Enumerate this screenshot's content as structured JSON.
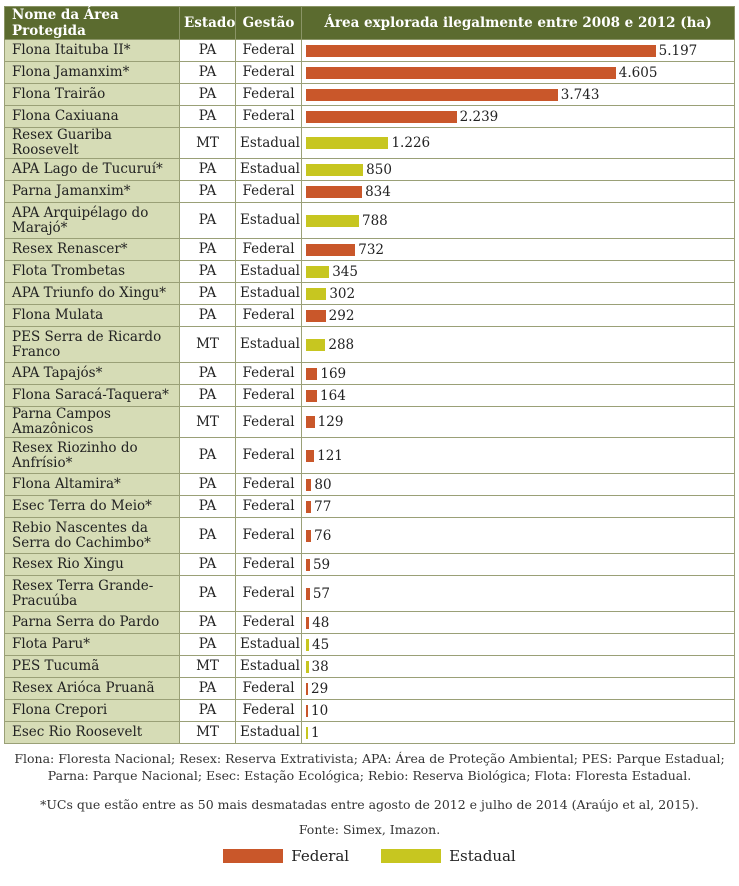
{
  "header": {
    "name": "Nome da Área Protegida",
    "state": "Estado",
    "management": "Gestão",
    "area": "Área explorada ilegalmente entre 2008 e 2012 (ha)"
  },
  "colors": {
    "Federal": "#c9572a",
    "Estadual": "#c7c620"
  },
  "chart_data": {
    "type": "bar",
    "orientation": "horizontal",
    "title": "",
    "value_label": "Área explorada ilegalmente entre 2008 e 2012 (ha)",
    "xlim": [
      0,
      5500
    ],
    "rows": [
      {
        "name": "Flona Itaituba II*",
        "state": "PA",
        "management": "Federal",
        "value": 5197,
        "label": "5.197"
      },
      {
        "name": "Flona Jamanxim*",
        "state": "PA",
        "management": "Federal",
        "value": 4605,
        "label": "4.605"
      },
      {
        "name": "Flona Trairão",
        "state": "PA",
        "management": "Federal",
        "value": 3743,
        "label": "3.743"
      },
      {
        "name": "Flona Caxiuana",
        "state": "PA",
        "management": "Federal",
        "value": 2239,
        "label": "2.239"
      },
      {
        "name": "Resex Guariba Roosevelt",
        "state": "MT",
        "management": "Estadual",
        "value": 1226,
        "label": "1.226"
      },
      {
        "name": "APA Lago de Tucuruí*",
        "state": "PA",
        "management": "Estadual",
        "value": 850,
        "label": "850"
      },
      {
        "name": "Parna Jamanxim*",
        "state": "PA",
        "management": "Federal",
        "value": 834,
        "label": "834"
      },
      {
        "name": "APA Arquipélago do Marajó*",
        "state": "PA",
        "management": "Estadual",
        "value": 788,
        "label": "788"
      },
      {
        "name": "Resex Renascer*",
        "state": "PA",
        "management": "Federal",
        "value": 732,
        "label": "732"
      },
      {
        "name": "Flota Trombetas",
        "state": "PA",
        "management": "Estadual",
        "value": 345,
        "label": "345"
      },
      {
        "name": "APA Triunfo do Xingu*",
        "state": "PA",
        "management": "Estadual",
        "value": 302,
        "label": "302"
      },
      {
        "name": "Flona Mulata",
        "state": "PA",
        "management": "Federal",
        "value": 292,
        "label": "292"
      },
      {
        "name": "PES Serra de Ricardo Franco",
        "state": "MT",
        "management": "Estadual",
        "value": 288,
        "label": "288"
      },
      {
        "name": "APA Tapajós*",
        "state": "PA",
        "management": "Federal",
        "value": 169,
        "label": "169"
      },
      {
        "name": "Flona Saracá-Taquera*",
        "state": "PA",
        "management": "Federal",
        "value": 164,
        "label": "164"
      },
      {
        "name": "Parna Campos Amazônicos",
        "state": "MT",
        "management": "Federal",
        "value": 129,
        "label": "129"
      },
      {
        "name": "Resex Riozinho do Anfrísio*",
        "state": "PA",
        "management": "Federal",
        "value": 121,
        "label": "121"
      },
      {
        "name": "Flona Altamira*",
        "state": "PA",
        "management": "Federal",
        "value": 80,
        "label": "80"
      },
      {
        "name": "Esec Terra do Meio*",
        "state": "PA",
        "management": "Federal",
        "value": 77,
        "label": "77"
      },
      {
        "name": "Rebio Nascentes da Serra do Cachimbo*",
        "state": "PA",
        "management": "Federal",
        "value": 76,
        "label": "76"
      },
      {
        "name": "Resex Rio Xingu",
        "state": "PA",
        "management": "Federal",
        "value": 59,
        "label": "59"
      },
      {
        "name": "Resex Terra Grande-Pracuúba",
        "state": "PA",
        "management": "Federal",
        "value": 57,
        "label": "57"
      },
      {
        "name": "Parna Serra do Pardo",
        "state": "PA",
        "management": "Federal",
        "value": 48,
        "label": "48"
      },
      {
        "name": "Flota Paru*",
        "state": "PA",
        "management": "Estadual",
        "value": 45,
        "label": "45"
      },
      {
        "name": "PES Tucumã",
        "state": "MT",
        "management": "Estadual",
        "value": 38,
        "label": "38"
      },
      {
        "name": "Resex Arióca Pruanã",
        "state": "PA",
        "management": "Federal",
        "value": 29,
        "label": "29"
      },
      {
        "name": "Flona Crepori",
        "state": "PA",
        "management": "Federal",
        "value": 10,
        "label": "10"
      },
      {
        "name": "Esec Rio Roosevelt",
        "state": "MT",
        "management": "Estadual",
        "value": 1,
        "label": "1"
      }
    ],
    "legend": [
      "Federal",
      "Estadual"
    ],
    "legend_position": "bottom-center"
  },
  "notes": {
    "abbreviations": "Flona: Floresta Nacional; Resex: Reserva Extrativista; APA: Área de Proteção Ambiental; PES: Parque Estadual; Parna: Parque Nacional; Esec: Estação Ecológica; Rebio: Reserva Biológica; Flota: Floresta Estadual.",
    "asterisk": "*UCs que estão entre as 50 mais desmatadas entre agosto de 2012 e julho de 2014 (Araújo et al, 2015).",
    "source": "Fonte: Simex, Imazon."
  },
  "legend": {
    "federal": "Federal",
    "estadual": "Estadual"
  }
}
